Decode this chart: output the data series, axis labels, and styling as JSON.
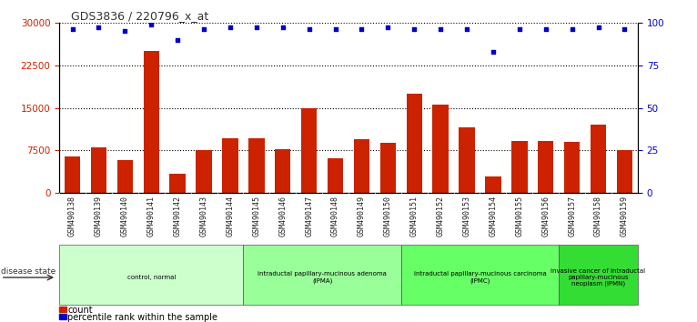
{
  "title": "GDS3836 / 220796_x_at",
  "samples": [
    "GSM490138",
    "GSM490139",
    "GSM490140",
    "GSM490141",
    "GSM490142",
    "GSM490143",
    "GSM490144",
    "GSM490145",
    "GSM490146",
    "GSM490147",
    "GSM490148",
    "GSM490149",
    "GSM490150",
    "GSM490151",
    "GSM490152",
    "GSM490153",
    "GSM490154",
    "GSM490155",
    "GSM490156",
    "GSM490157",
    "GSM490158",
    "GSM490159"
  ],
  "counts": [
    6500,
    8000,
    5800,
    25000,
    3500,
    7500,
    9700,
    9700,
    7800,
    15000,
    6200,
    9500,
    8800,
    17500,
    15500,
    11500,
    3000,
    9200,
    9200,
    9000,
    12000,
    7500
  ],
  "percentile_ranks": [
    96,
    97,
    95,
    99,
    90,
    96,
    97,
    97,
    97,
    96,
    96,
    96,
    97,
    96,
    96,
    96,
    83,
    96,
    96,
    96,
    97,
    96
  ],
  "bar_color": "#cc2200",
  "dot_color": "#0000cc",
  "ylim_left": [
    0,
    30000
  ],
  "ylim_right": [
    0,
    100
  ],
  "yticks_left": [
    0,
    7500,
    15000,
    22500,
    30000
  ],
  "yticks_right": [
    0,
    25,
    50,
    75,
    100
  ],
  "groups": [
    {
      "label": "control, normal",
      "start": 0,
      "end": 7,
      "color": "#ccffcc"
    },
    {
      "label": "intraductal papillary-mucinous adenoma\n(IPMA)",
      "start": 7,
      "end": 13,
      "color": "#99ff99"
    },
    {
      "label": "intraductal papillary-mucinous carcinoma\n(IPMC)",
      "start": 13,
      "end": 19,
      "color": "#66ff66"
    },
    {
      "label": "invasive cancer of intraductal\npapillary-mucinous\nneoplasm (IPMN)",
      "start": 19,
      "end": 22,
      "color": "#33dd33"
    }
  ],
  "disease_state_label": "disease state",
  "legend_count_label": "count",
  "legend_percentile_label": "percentile rank within the sample",
  "background_color": "#ffffff",
  "tick_bg_color": "#cccccc",
  "grid_color": "#000000",
  "tick_label_color_left": "#cc2200",
  "tick_label_color_right": "#0000cc"
}
